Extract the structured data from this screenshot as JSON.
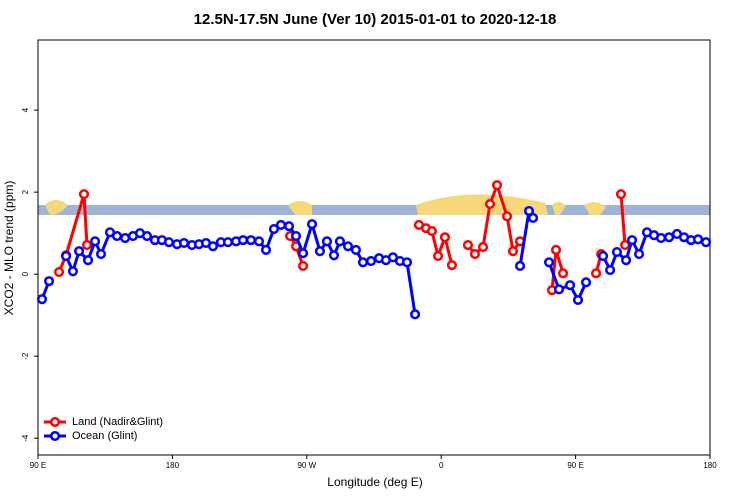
{
  "chart_data": {
    "type": "line",
    "title": "12.5N-17.5N June (Ver 10)   2015-01-01 to 2020-12-18",
    "x_label": "Longitude (deg E)",
    "y_label": "XCO2 - MLO trend (ppm)",
    "xlim": [
      90,
      540
    ],
    "xticks": [
      {
        "value": 90,
        "label": "90 E"
      },
      180,
      {
        "value": 270,
        "label": "90 W"
      },
      {
        "value": 360,
        "label": "0"
      },
      {
        "value": 450,
        "label": "90 E"
      },
      {
        "value": 540,
        "label": "180"
      }
    ],
    "ylim": [
      -4.41,
      5.71
    ],
    "yticks": [
      -4,
      -2,
      0,
      2,
      4
    ],
    "legend": "bottom-left",
    "series": [
      {
        "name": "Land (Nadir&Glint)",
        "color": "#ff0000",
        "x": [
          104.1,
          108.8,
          120.8,
          122.8,
          200,
          258.8,
          262.8,
          267.5,
          300,
          345.1,
          349.8,
          353.8,
          357.9,
          362.5,
          367.2,
          372,
          377.9,
          382.6,
          388,
          392.7,
          397.4,
          404.1,
          408.1,
          412.8,
          425,
          434.2,
          436.9,
          441.6,
          455,
          463.7,
          467.1,
          475,
          480.4,
          483.1
        ],
        "values": [
          0.05,
          0.46,
          1.95,
          0.71,
          null,
          0.93,
          0.68,
          0.2,
          null,
          1.2,
          1.12,
          1.05,
          0.44,
          0.9,
          0.22,
          null,
          0.71,
          0.49,
          0.66,
          1.71,
          2.17,
          1.41,
          0.56,
          0.8,
          null,
          -0.39,
          0.59,
          0.02,
          null,
          0.02,
          0.49,
          null,
          1.95,
          0.71
        ]
      },
      {
        "name": "Ocean (Glint)",
        "color": "#0000ff",
        "x": [
          92.7,
          97.4,
          103,
          108.8,
          113.4,
          117.5,
          123.5,
          128.2,
          132.2,
          138.2,
          142.9,
          148.3,
          153.6,
          158.3,
          163,
          168.3,
          173,
          177.7,
          183.1,
          187.8,
          193.1,
          197.8,
          202.5,
          207.2,
          212.5,
          217.2,
          222.6,
          227.3,
          232.6,
          238,
          242.7,
          248,
          252.7,
          258.1,
          262.8,
          267.5,
          273.5,
          278.8,
          283.5,
          288.2,
          292.2,
          297.6,
          302.9,
          307.6,
          313,
          318.4,
          323,
          327.7,
          332.4,
          337.1,
          342.5,
          380,
          412.8,
          418.8,
          421.5,
          427,
          432.2,
          438.9,
          446.3,
          451.6,
          457,
          462,
          468.4,
          473.1,
          477.7,
          483.8,
          487.8,
          492.5,
          497.8,
          502.5,
          507.2,
          512.6,
          517.9,
          522.6,
          527.3,
          532,
          537.3
        ],
        "values": [
          -0.61,
          -0.17,
          null,
          0.44,
          0.07,
          0.56,
          0.34,
          0.8,
          0.49,
          1.02,
          0.93,
          0.88,
          0.93,
          1.0,
          0.93,
          0.83,
          0.83,
          0.78,
          0.73,
          0.76,
          0.71,
          0.73,
          0.76,
          0.68,
          0.78,
          0.78,
          0.8,
          0.83,
          0.83,
          0.8,
          0.59,
          1.1,
          1.2,
          1.17,
          0.93,
          0.51,
          1.22,
          0.56,
          0.8,
          0.46,
          0.8,
          0.68,
          0.59,
          0.29,
          0.32,
          0.39,
          0.34,
          0.41,
          0.32,
          0.29,
          -0.98,
          null,
          0.2,
          1.54,
          1.37,
          null,
          0.29,
          -0.37,
          -0.27,
          -0.63,
          -0.2,
          null,
          0.44,
          0.1,
          0.54,
          0.34,
          0.83,
          0.49,
          1.02,
          0.95,
          0.88,
          0.9,
          0.98,
          0.9,
          0.83,
          0.85,
          0.78
        ]
      }
    ]
  }
}
